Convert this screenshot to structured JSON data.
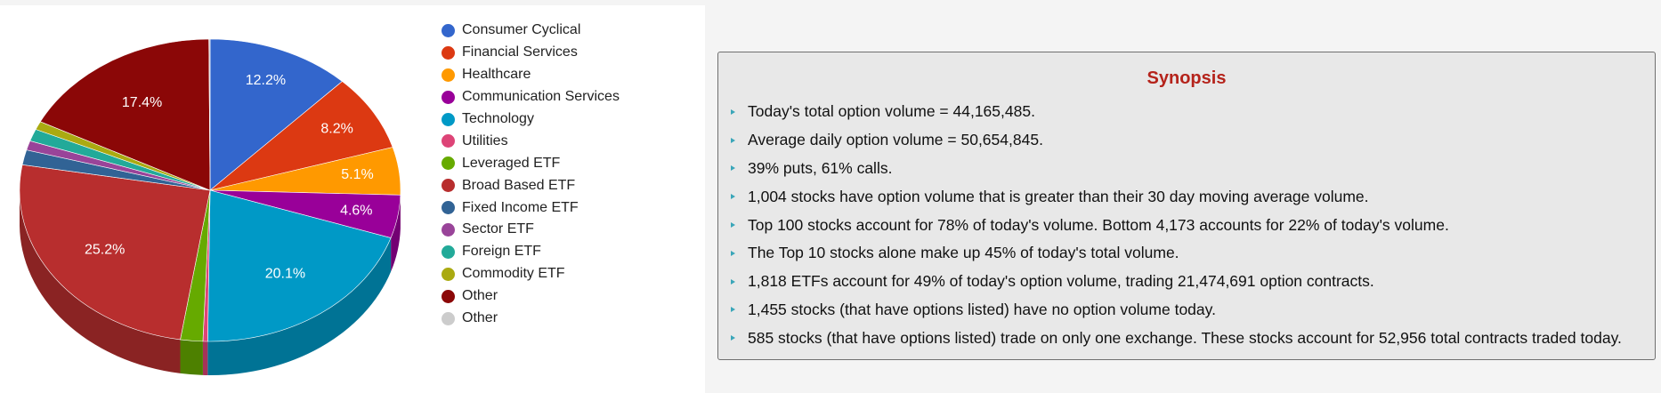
{
  "chart_data": {
    "type": "pie",
    "three_d": true,
    "legend_position": "right",
    "slices": [
      {
        "label": "Consumer Cyclical",
        "value": 12.2,
        "color": "#3366cc",
        "data_label": "12.2%"
      },
      {
        "label": "Financial Services",
        "value": 8.2,
        "color": "#dc3912",
        "data_label": "8.2%"
      },
      {
        "label": "Healthcare",
        "value": 5.1,
        "color": "#ff9900",
        "data_label": "5.1%"
      },
      {
        "label": "Communication Services",
        "value": 4.6,
        "color": "#990099",
        "data_label": "4.6%"
      },
      {
        "label": "Technology",
        "value": 20.1,
        "color": "#0099c6",
        "data_label": "20.1%"
      },
      {
        "label": "Utilities",
        "value": 0.4,
        "color": "#dd4477",
        "data_label": ""
      },
      {
        "label": "Leveraged ETF",
        "value": 1.9,
        "color": "#66aa00",
        "data_label": ""
      },
      {
        "label": "Broad Based ETF",
        "value": 25.2,
        "color": "#b82e2e",
        "data_label": "25.2%"
      },
      {
        "label": "Fixed Income ETF",
        "value": 1.6,
        "color": "#316395",
        "data_label": ""
      },
      {
        "label": "Sector ETF",
        "value": 1.0,
        "color": "#994499",
        "data_label": ""
      },
      {
        "label": "Foreign ETF",
        "value": 1.3,
        "color": "#22aa99",
        "data_label": ""
      },
      {
        "label": "Commodity ETF",
        "value": 0.9,
        "color": "#aaaa11",
        "data_label": ""
      },
      {
        "label": "Other",
        "value": 17.4,
        "color": "#8b0707",
        "data_label": "17.4%"
      },
      {
        "label": "Other",
        "value": 0.1,
        "color": "#cccccc",
        "data_label": ""
      }
    ]
  },
  "synopsis": {
    "title": "Synopsis",
    "items": [
      "Today's total option volume = 44,165,485.",
      "Average daily option volume = 50,654,845.",
      "39% puts, 61% calls.",
      "1,004 stocks have option volume that is greater than their 30 day moving average volume.",
      "Top 100 stocks account for 78% of today's volume. Bottom 4,173 accounts for 22% of today's volume.",
      "The Top 10 stocks alone make up 45% of today's total volume.",
      "1,818 ETFs account for 49% of today's option volume, trading 21,474,691 option contracts.",
      "1,455 stocks (that have options listed) have no option volume today.",
      "585 stocks (that have options listed) trade on only one exchange. These stocks account for 52,956 total contracts traded today."
    ],
    "bullet_color": "#3aa6b9",
    "title_color": "#b5231b"
  }
}
